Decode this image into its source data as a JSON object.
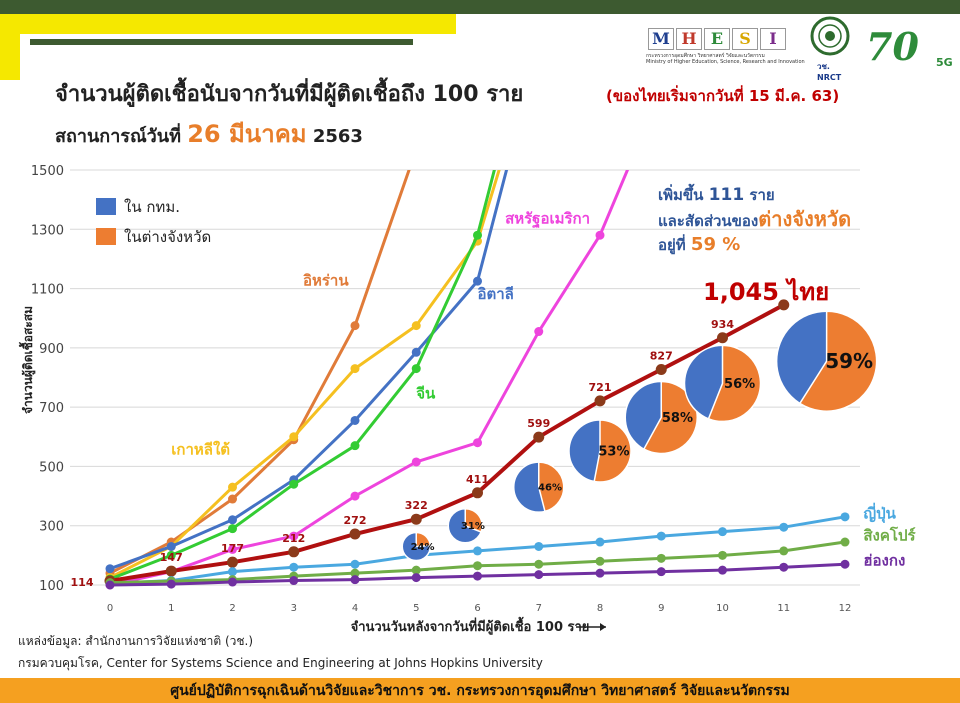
{
  "header": {
    "title": "จำนวนผู้ติดเชื้อนับจากวันที่มีผู้ติดเชื้อถึง 100 ราย",
    "title_note": "(ของไทยเริ่มจากวันที่ 15 มี.ค. 63)",
    "subtitle_prefix": "สถานการณ์วันที่",
    "subtitle_date": "26 มีนาคม",
    "subtitle_year": "2563"
  },
  "logos": {
    "mhesi_letters": [
      "M",
      "H",
      "E",
      "S",
      "I"
    ],
    "mhesi_colors": [
      "#1f3f8f",
      "#c0392b",
      "#2e8b3a",
      "#d8a700",
      "#7b2d8b"
    ],
    "mhesi_sub": "กระทรวงการอุดมศึกษา วิทยาศาสตร์ วิจัยและนวัตกรรม",
    "mhesi_sub_en": "Ministry of Higher Education, Science, Research and Innovation",
    "nrct": "วช.",
    "nrct_en": "NRCT",
    "seventy": "70",
    "fiveg": "5G"
  },
  "info_box": {
    "line1_prefix": "เพิ่มขึ้น",
    "line1_num": "111",
    "line1_suffix": "ราย",
    "line2_prefix": "และสัดส่วนของ",
    "line2_highlight": "ต่างจังหวัด",
    "line3_prefix": "อยู่ที่",
    "line3_pct": "59 %"
  },
  "thai_label": "1,045 ไทย",
  "sources": {
    "line1": "แหล่งข้อมูล: สำนักงานการวิจัยแห่งชาติ (วช.)",
    "line2": "กรมควบคุมโรค, Center for Systems Science and Engineering at Johns Hopkins University"
  },
  "footer": "ศูนย์ปฏิบัติการฉุกเฉินด้านวิจัยและวิชาการ    วช.   กระทรวงการอุดมศึกษา วิทยาศาสตร์ วิจัยและนวัตกรรม",
  "chart_data": {
    "type": "line",
    "xlabel": "จำนวนวันหลังจากวันที่มีผู้ติดเชื้อ 100 ราย",
    "ylabel": "จำนวนผู้ติดเชื้อสะสม",
    "xlim": [
      0,
      12
    ],
    "ylim": [
      100,
      1500
    ],
    "yticks": [
      100,
      300,
      500,
      700,
      900,
      1100,
      1300,
      1500
    ],
    "xticks": [
      0,
      1,
      2,
      3,
      4,
      5,
      6,
      7,
      8,
      9,
      10,
      11,
      12
    ],
    "legend": [
      {
        "name": "ใน กทม.",
        "color": "#4472c4"
      },
      {
        "name": "ในต่างจังหวัด",
        "color": "#ed7d31"
      }
    ],
    "series": [
      {
        "name": "อิหร่าน",
        "color": "#e07b39",
        "x": [
          0,
          1,
          2,
          3,
          4,
          5
        ],
        "y": [
          140,
          245,
          390,
          590,
          975,
          1570
        ],
        "label_x": 3.15,
        "label_y": 1110
      },
      {
        "name": "เกาหลีใต้",
        "color": "#f5c020",
        "x": [
          0,
          1,
          2,
          3,
          4,
          5,
          6,
          6.5
        ],
        "y": [
          125,
          230,
          430,
          600,
          830,
          975,
          1260,
          1600
        ],
        "label_x": 1.0,
        "label_y": 540
      },
      {
        "name": "อิตาลี",
        "color": "#4472c4",
        "x": [
          0,
          1,
          2,
          3,
          4,
          5,
          6,
          6.6
        ],
        "y": [
          155,
          230,
          320,
          455,
          655,
          885,
          1125,
          1600
        ],
        "label_x": 6.0,
        "label_y": 1065
      },
      {
        "name": "จีน",
        "color": "#33cc33",
        "x": [
          0,
          1,
          2,
          3,
          4,
          5,
          6,
          6.4
        ],
        "y": [
          120,
          200,
          290,
          440,
          570,
          830,
          1280,
          1600
        ],
        "label_x": 5.0,
        "label_y": 730
      },
      {
        "name": "สหรัฐอเมริกา",
        "color": "#ee44dd",
        "x": [
          0,
          1,
          2,
          3,
          4,
          5,
          6,
          7,
          8,
          8.55
        ],
        "y": [
          100,
          145,
          220,
          265,
          400,
          515,
          580,
          955,
          1280,
          1550
        ],
        "label_x": 6.45,
        "label_y": 1320
      },
      {
        "name": "ไทย",
        "color": "#b01010",
        "x": [
          0,
          1,
          2,
          3,
          4,
          5,
          6,
          7,
          8,
          9,
          10,
          11
        ],
        "y": [
          114,
          147,
          177,
          212,
          272,
          322,
          411,
          599,
          721,
          827,
          934,
          1045
        ],
        "point_labels": [
          "114",
          "147",
          "177",
          "212",
          "272",
          "322",
          "411",
          "599",
          "721",
          "827",
          "934",
          "1,045"
        ]
      },
      {
        "name": "ญี่ปุ่น",
        "color": "#4aa8e0",
        "x": [
          0,
          1,
          2,
          3,
          4,
          5,
          6,
          7,
          8,
          9,
          10,
          11,
          12
        ],
        "y": [
          105,
          115,
          145,
          160,
          170,
          200,
          215,
          230,
          245,
          265,
          280,
          295,
          330
        ],
        "label_x": 12.3,
        "label_y": 325
      },
      {
        "name": "สิงคโปร์",
        "color": "#70ad47",
        "x": [
          0,
          1,
          2,
          3,
          4,
          5,
          6,
          7,
          8,
          9,
          10,
          11,
          12
        ],
        "y": [
          108,
          113,
          118,
          130,
          140,
          150,
          165,
          170,
          180,
          190,
          200,
          215,
          245
        ],
        "label_x": 12.3,
        "label_y": 250
      },
      {
        "name": "ฮ่องกง",
        "color": "#7030a0",
        "x": [
          0,
          1,
          2,
          3,
          4,
          5,
          6,
          7,
          8,
          9,
          10,
          11,
          12
        ],
        "y": [
          100,
          103,
          110,
          115,
          118,
          125,
          130,
          135,
          140,
          145,
          150,
          160,
          170
        ],
        "label_x": 12.3,
        "label_y": 165
      }
    ],
    "pies": [
      {
        "day": 5,
        "level": 230,
        "radius": 14,
        "orange_pct": 24,
        "label": "24%"
      },
      {
        "day": 5.8,
        "level": 300,
        "radius": 17,
        "orange_pct": 31,
        "label": "31%"
      },
      {
        "day": 7,
        "level": 430,
        "radius": 25,
        "orange_pct": 46,
        "label": "46%"
      },
      {
        "day": 8,
        "level": 552,
        "radius": 31,
        "orange_pct": 53,
        "label": "53%"
      },
      {
        "day": 9,
        "level": 665,
        "radius": 36,
        "orange_pct": 58,
        "label": "58%"
      },
      {
        "day": 10,
        "level": 780,
        "radius": 38,
        "orange_pct": 56,
        "label": "56%"
      },
      {
        "day": 11.7,
        "level": 855,
        "radius": 50,
        "orange_pct": 59,
        "label": "59%"
      }
    ]
  }
}
